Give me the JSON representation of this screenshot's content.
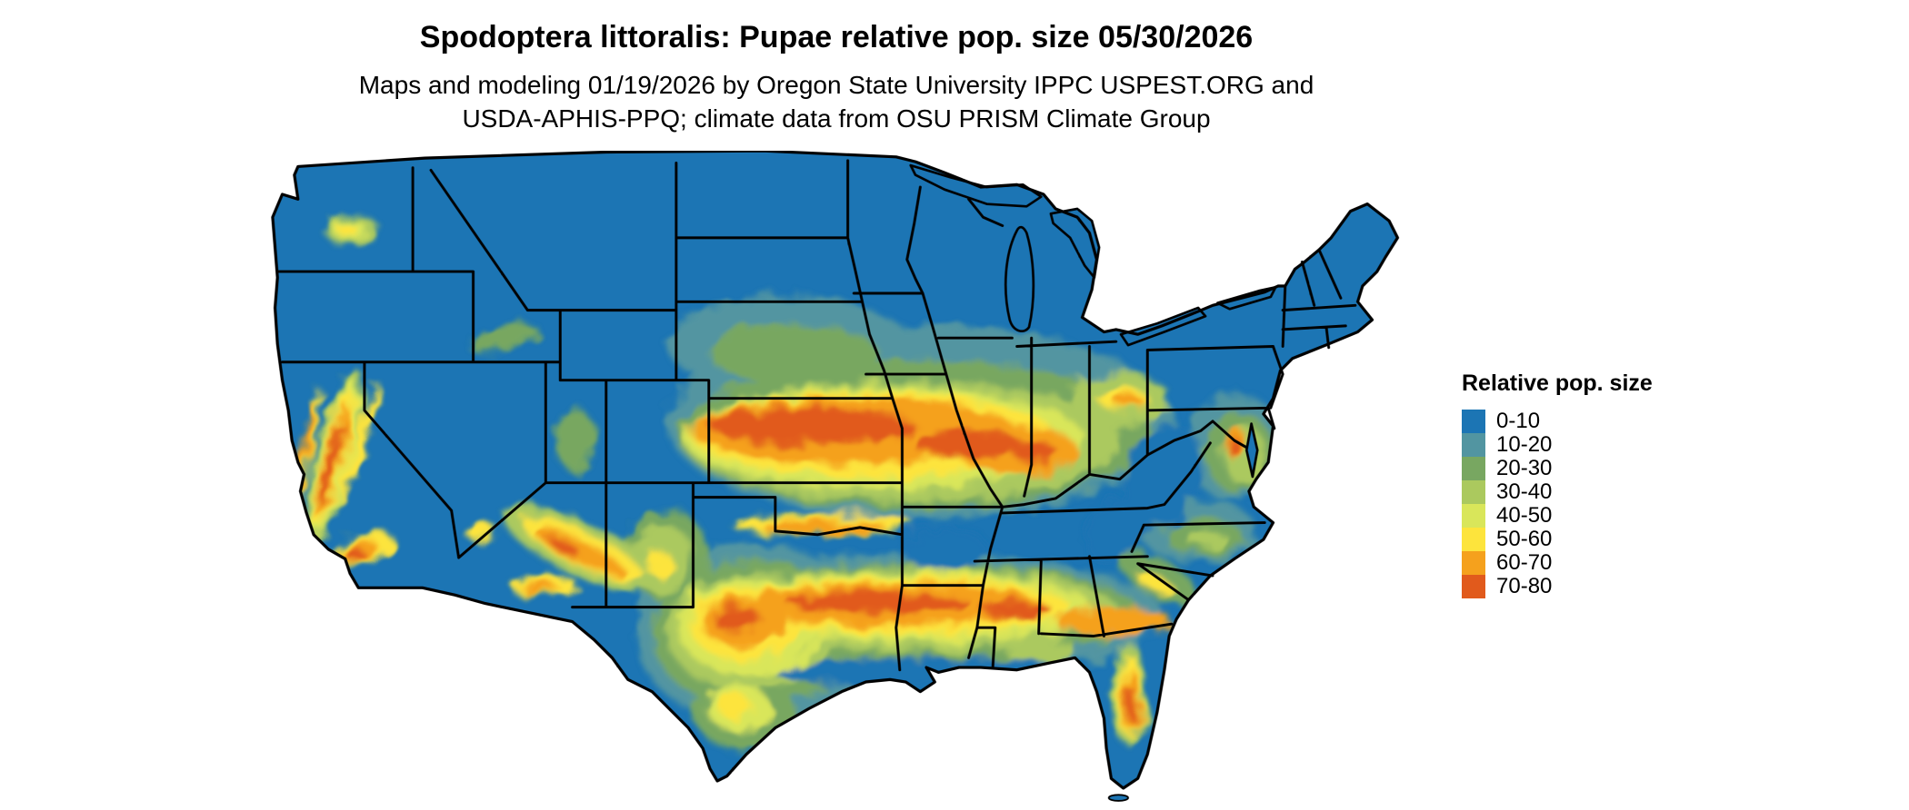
{
  "header": {
    "title": "Spodoptera littoralis: Pupae relative pop. size 05/30/2026",
    "subtitle_line1": "Maps and modeling 01/19/2026 by Oregon State University IPPC USPEST.ORG and",
    "subtitle_line2": "USDA-APHIS-PPQ; climate data from OSU PRISM Climate Group"
  },
  "legend": {
    "title": "Relative pop. size",
    "entries": [
      {
        "label": "0-10",
        "color": "#1c75b4"
      },
      {
        "label": "10-20",
        "color": "#5295a1"
      },
      {
        "label": "20-30",
        "color": "#78a761"
      },
      {
        "label": "30-40",
        "color": "#abc95e"
      },
      {
        "label": "40-50",
        "color": "#d9e65a"
      },
      {
        "label": "50-60",
        "color": "#fde43c"
      },
      {
        "label": "60-70",
        "color": "#f5a11d"
      },
      {
        "label": "70-80",
        "color": "#e15a1c"
      }
    ]
  },
  "map": {
    "region": "Conterminous United States",
    "base_color": "#1c75b4",
    "border_color": "#000000",
    "background": "#ffffff",
    "high_value_regions": [
      "California Central Valley and south coast",
      "Arizona and New Mexico highlands",
      "Southern Great Plains through lower Midwest (Kansas, Missouri, Illinois, Kentucky)",
      "Gulf South band from central Texas through Georgia",
      "Mid-Atlantic Delmarva area",
      "Central Florida ridge"
    ],
    "low_value_regions": [
      "Northern tier states, Rockies, Appalachians and Great Lakes region (0-10 class)"
    ]
  }
}
